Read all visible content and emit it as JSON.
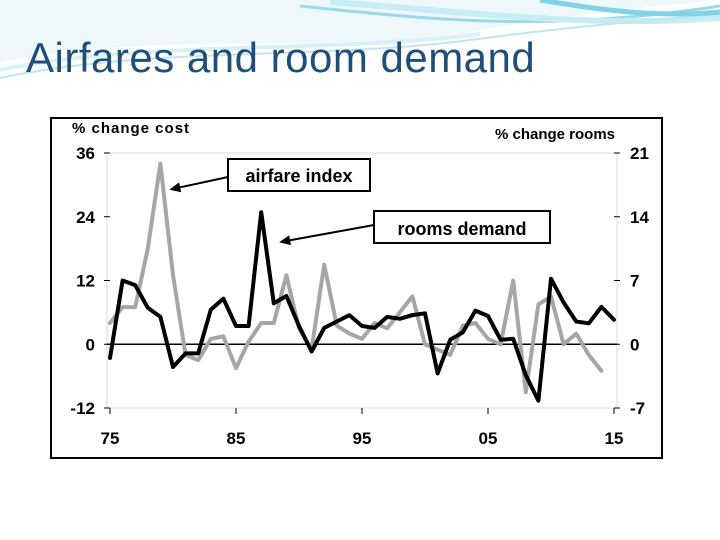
{
  "slide": {
    "title": "Airfares and room demand"
  },
  "colors": {
    "title": "#1f4e79",
    "airfare_series": "#a6a6a6",
    "rooms_series": "#000000",
    "wave_accent": "#7fd3e6"
  },
  "chart_data": {
    "type": "line",
    "title": "",
    "ylabel_left": "% change cost",
    "ylabel_right": "% change rooms",
    "x_ticks": [
      "75",
      "85",
      "95",
      "05",
      "15"
    ],
    "x_tick_values": [
      1975,
      1985,
      1995,
      2005,
      2015
    ],
    "xlim": [
      1975,
      2015
    ],
    "ylim_left": [
      -12,
      36
    ],
    "y_ticks_left": [
      "36",
      "24",
      "12",
      "0",
      "-12"
    ],
    "y_tick_values_left": [
      36,
      24,
      12,
      0,
      -12
    ],
    "ylim_right": [
      -7,
      21
    ],
    "y_ticks_right": [
      "21",
      "14",
      "7",
      "0",
      "-7"
    ],
    "y_tick_values_right": [
      21,
      14,
      7,
      0,
      -7
    ],
    "grid": false,
    "series": [
      {
        "name": "airfare index",
        "axis": "left",
        "x": [
          1975,
          1976,
          1977,
          1978,
          1979,
          1980,
          1981,
          1982,
          1983,
          1984,
          1985,
          1986,
          1987,
          1988,
          1989,
          1990,
          1991,
          1992,
          1993,
          1994,
          1995,
          1996,
          1997,
          1998,
          1999,
          2000,
          2001,
          2002,
          2003,
          2004,
          2005,
          2006,
          2007,
          2008,
          2009,
          2010,
          2011,
          2012,
          2013,
          2014
        ],
        "y": [
          4,
          7,
          7,
          18,
          34,
          13,
          -2,
          -3,
          1,
          1.5,
          -4.5,
          0.5,
          4,
          4,
          13,
          3,
          -1,
          15,
          3.5,
          2,
          1,
          4,
          3,
          6,
          9,
          0,
          -1,
          -2,
          3.5,
          4,
          1,
          0,
          12,
          -9,
          7.5,
          9,
          0,
          2,
          -2,
          -5
        ]
      },
      {
        "name": "rooms demand",
        "axis": "right",
        "x": [
          1975,
          1976,
          1977,
          1978,
          1979,
          1980,
          1981,
          1982,
          1983,
          1984,
          1985,
          1986,
          1987,
          1988,
          1989,
          1990,
          1991,
          1992,
          1993,
          1994,
          1995,
          1996,
          1997,
          1998,
          1999,
          2000,
          2001,
          2002,
          2003,
          2004,
          2005,
          2006,
          2007,
          2008,
          2009,
          2010,
          2011,
          2012,
          2013,
          2014,
          2015
        ],
        "y": [
          -1.5,
          7,
          6.5,
          4,
          3,
          -2.5,
          -1,
          -1,
          3.8,
          5,
          2,
          2,
          14.5,
          4.5,
          5.3,
          2,
          -0.8,
          1.8,
          2.5,
          3.2,
          2,
          1.8,
          3,
          2.8,
          3.2,
          3.4,
          -3.2,
          0.5,
          1.3,
          3.7,
          3.1,
          0.5,
          0.6,
          -3.4,
          -6.2,
          7.2,
          4.6,
          2.5,
          2.3,
          4.1,
          2.7
        ]
      }
    ],
    "annotations": [
      {
        "text": "airfare index",
        "points_to": {
          "series": "airfare index",
          "x": 1979,
          "y": 34
        }
      },
      {
        "text": "rooms demand",
        "points_to": {
          "series": "rooms demand",
          "x": 1987,
          "y": 14.5
        }
      }
    ]
  }
}
